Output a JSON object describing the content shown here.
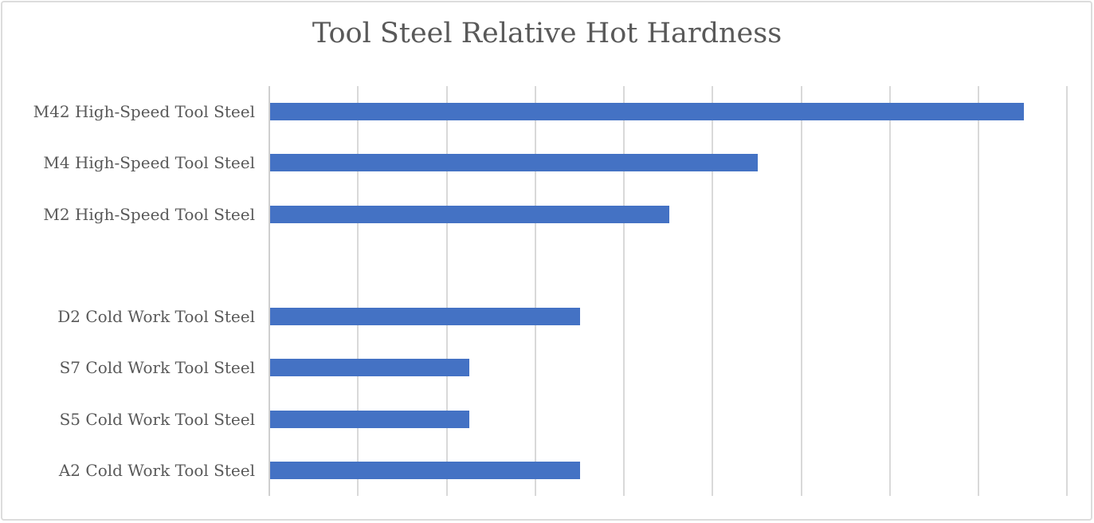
{
  "title": "Tool Steel Relative Hot Hardness",
  "colors": {
    "bar": "#4472C4",
    "gridline": "#D9D9D9",
    "axis_line": "#CFCFCF",
    "title_text": "#595959",
    "label_text": "#595959",
    "chart_border": "#DCDCDC",
    "background": "#FFFFFF"
  },
  "chart_data": {
    "type": "bar",
    "orientation": "horizontal",
    "title": "Tool Steel Relative Hot Hardness",
    "categories": [
      "M42 High-Speed Tool Steel",
      "M4 High-Speed Tool Steel",
      "M2 High-Speed Tool Steel",
      "",
      "D2 Cold Work Tool Steel",
      "S7 Cold Work Tool Steel",
      "S5 Cold Work Tool Steel",
      "A2 Cold Work Tool Steel"
    ],
    "values": [
      8.5,
      5.5,
      4.5,
      null,
      3.5,
      2.25,
      2.25,
      3.5
    ],
    "xlabel": "",
    "ylabel": "",
    "xlim": [
      0,
      9
    ],
    "gridline_interval": 1,
    "x_tick_labels_visible": false,
    "legend": "none",
    "grid": "vertical-major-gridlines",
    "bar_color": "#4472C4",
    "single_series": true
  }
}
